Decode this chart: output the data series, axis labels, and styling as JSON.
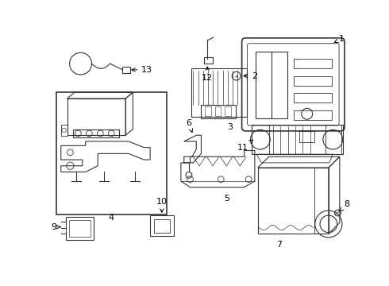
{
  "background_color": "#ffffff",
  "line_color": "#333333",
  "figsize": [
    4.9,
    3.6
  ],
  "dpi": 100
}
